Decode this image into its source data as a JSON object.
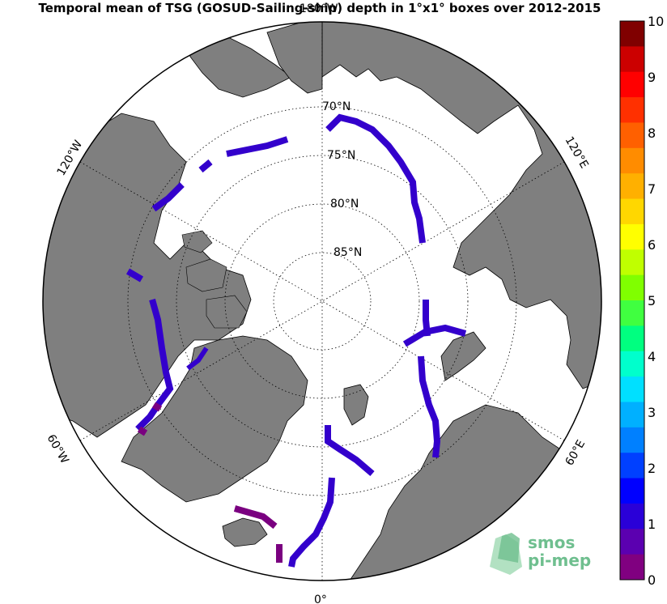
{
  "title": "Temporal mean of TSG (GOSUD-Sailing-ship) depth in 1°x1° boxes over 2012-2015",
  "meridian_labels": {
    "top": "180°W",
    "left_upper": "120°W",
    "right_upper": "120°E",
    "left_lower": "60°W",
    "right_lower": "60°E",
    "bottom": "0°"
  },
  "parallel_labels": [
    "70°N",
    "75°N",
    "80°N",
    "85°N"
  ],
  "colorbar": {
    "ticks": [
      "0",
      "1",
      "2",
      "3",
      "4",
      "5",
      "6",
      "7",
      "8",
      "9",
      "10"
    ],
    "colors": [
      "#800080",
      "#5b00b0",
      "#2a00d8",
      "#0000ff",
      "#0040ff",
      "#0080ff",
      "#00b0ff",
      "#00e0ff",
      "#00ffcc",
      "#00ff80",
      "#40ff40",
      "#80ff00",
      "#c0ff00",
      "#ffff00",
      "#ffd700",
      "#ffb000",
      "#ff8c00",
      "#ff6000",
      "#ff3000",
      "#ff0000",
      "#cc0000",
      "#800000"
    ]
  },
  "logo": {
    "line1": "smos",
    "line2": "pi-mep"
  },
  "map_colors": {
    "land": "#7f7f7f",
    "ocean": "#ffffff",
    "track_main": "#3300cc",
    "track_shallow": "#7a0080"
  }
}
